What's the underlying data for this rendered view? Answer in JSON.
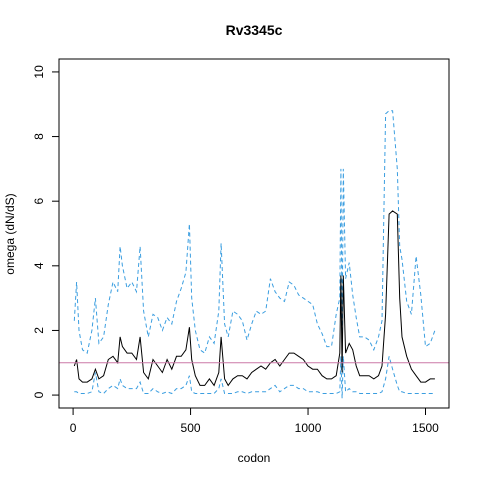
{
  "chart_data": {
    "type": "line",
    "title": "Rv3345c",
    "xlabel": "codon",
    "ylabel": "omega (dN/dS)",
    "xlim": [
      -60,
      1600
    ],
    "ylim": [
      -0.4,
      10.4
    ],
    "x_ticks": [
      0,
      500,
      1000,
      1500
    ],
    "y_ticks": [
      0,
      2,
      4,
      6,
      8,
      10
    ],
    "x_tick_labels": [
      "0",
      "500",
      "1000",
      "1500"
    ],
    "y_tick_labels": [
      "0",
      "2",
      "4",
      "6",
      "8",
      "10"
    ],
    "grid": false,
    "legend": "none",
    "reference_line": {
      "y": 1,
      "color": "#cc79a7"
    },
    "series": [
      {
        "role": "estimate",
        "color": "#000000",
        "dash": "solid",
        "x": [
          5,
          15,
          25,
          40,
          60,
          80,
          95,
          110,
          130,
          150,
          170,
          190,
          200,
          210,
          230,
          250,
          270,
          285,
          300,
          320,
          340,
          360,
          380,
          400,
          420,
          440,
          460,
          480,
          495,
          505,
          520,
          540,
          560,
          580,
          600,
          620,
          630,
          645,
          660,
          680,
          700,
          720,
          740,
          760,
          780,
          800,
          820,
          840,
          860,
          880,
          900,
          920,
          940,
          960,
          980,
          1000,
          1020,
          1040,
          1060,
          1080,
          1100,
          1120,
          1135,
          1140,
          1145,
          1150,
          1160,
          1175,
          1190,
          1205,
          1220,
          1240,
          1260,
          1280,
          1300,
          1315,
          1330,
          1345,
          1360,
          1380,
          1390,
          1400,
          1420,
          1440,
          1460,
          1480,
          1500,
          1520,
          1540
        ],
        "y": [
          0.9,
          1.1,
          0.5,
          0.4,
          0.4,
          0.5,
          0.8,
          0.5,
          0.6,
          1.1,
          1.2,
          1.0,
          1.8,
          1.5,
          1.3,
          1.3,
          1.1,
          1.8,
          0.7,
          0.5,
          1.1,
          0.9,
          0.7,
          1.1,
          0.8,
          1.2,
          1.2,
          1.4,
          2.1,
          1.1,
          0.6,
          0.3,
          0.3,
          0.5,
          0.3,
          0.7,
          1.8,
          0.5,
          0.3,
          0.5,
          0.6,
          0.6,
          0.5,
          0.7,
          0.8,
          0.9,
          0.8,
          1.0,
          1.1,
          0.9,
          1.1,
          1.3,
          1.3,
          1.2,
          1.1,
          0.9,
          0.8,
          0.8,
          0.6,
          0.5,
          0.5,
          0.6,
          1.3,
          3.7,
          0.7,
          3.7,
          1.3,
          1.6,
          1.4,
          0.9,
          0.6,
          0.6,
          0.6,
          0.5,
          0.6,
          0.9,
          2.5,
          5.6,
          5.7,
          5.6,
          3.0,
          1.8,
          1.2,
          0.8,
          0.6,
          0.4,
          0.4,
          0.5,
          0.5
        ]
      },
      {
        "role": "upper bound",
        "color": "#3b9ee0",
        "dash": "dashed",
        "x": [
          5,
          15,
          25,
          40,
          60,
          80,
          95,
          110,
          130,
          150,
          170,
          190,
          200,
          210,
          230,
          250,
          270,
          285,
          300,
          320,
          340,
          360,
          380,
          400,
          420,
          440,
          460,
          480,
          495,
          505,
          520,
          540,
          560,
          580,
          600,
          620,
          630,
          645,
          660,
          680,
          700,
          720,
          740,
          760,
          780,
          800,
          820,
          840,
          860,
          880,
          900,
          920,
          940,
          960,
          980,
          1000,
          1020,
          1040,
          1060,
          1080,
          1100,
          1120,
          1135,
          1140,
          1145,
          1150,
          1160,
          1175,
          1190,
          1205,
          1220,
          1240,
          1260,
          1280,
          1300,
          1315,
          1330,
          1345,
          1360,
          1380,
          1390,
          1400,
          1420,
          1440,
          1460,
          1480,
          1500,
          1520,
          1540
        ],
        "y": [
          2.3,
          3.5,
          2.0,
          1.4,
          1.3,
          2.0,
          3.0,
          1.6,
          1.8,
          2.8,
          3.5,
          3.2,
          4.6,
          4.0,
          3.3,
          3.5,
          3.2,
          4.6,
          2.6,
          1.8,
          2.5,
          2.4,
          2.0,
          2.4,
          2.2,
          2.9,
          3.3,
          3.8,
          5.3,
          3.0,
          2.0,
          1.4,
          1.3,
          1.8,
          1.6,
          2.6,
          4.7,
          2.2,
          1.8,
          2.6,
          2.5,
          2.3,
          1.7,
          2.2,
          2.6,
          2.5,
          2.6,
          3.6,
          3.2,
          3.0,
          2.9,
          3.5,
          3.4,
          3.1,
          3.0,
          2.9,
          2.8,
          2.2,
          1.9,
          1.5,
          1.5,
          2.5,
          3.0,
          7.0,
          1.8,
          7.0,
          3.6,
          4.1,
          3.1,
          2.4,
          1.8,
          1.8,
          1.7,
          1.4,
          1.8,
          2.3,
          8.7,
          8.8,
          8.8,
          7.0,
          4.6,
          4.2,
          2.9,
          2.5,
          4.3,
          3.1,
          1.5,
          1.6,
          2.0
        ]
      },
      {
        "role": "lower bound",
        "color": "#3b9ee0",
        "dash": "dashed",
        "x": [
          5,
          15,
          25,
          40,
          60,
          80,
          95,
          110,
          130,
          150,
          170,
          190,
          200,
          210,
          230,
          250,
          270,
          285,
          300,
          320,
          340,
          360,
          380,
          400,
          420,
          440,
          460,
          480,
          495,
          505,
          520,
          540,
          560,
          580,
          600,
          620,
          630,
          645,
          660,
          680,
          700,
          720,
          740,
          760,
          780,
          800,
          820,
          840,
          860,
          880,
          900,
          920,
          940,
          960,
          980,
          1000,
          1020,
          1040,
          1060,
          1080,
          1100,
          1120,
          1135,
          1140,
          1145,
          1150,
          1160,
          1175,
          1190,
          1205,
          1220,
          1240,
          1260,
          1280,
          1300,
          1315,
          1330,
          1345,
          1360,
          1380,
          1390,
          1400,
          1420,
          1440,
          1460,
          1480,
          1500,
          1520,
          1540
        ],
        "y": [
          0.1,
          0.1,
          0.05,
          0.05,
          0.05,
          0.1,
          0.7,
          0.1,
          0.05,
          0.2,
          0.3,
          0.2,
          0.5,
          0.3,
          0.2,
          0.2,
          0.2,
          0.4,
          0.05,
          0.05,
          0.2,
          0.1,
          0.05,
          0.1,
          0.05,
          0.2,
          0.2,
          0.3,
          0.6,
          0.1,
          0.05,
          0.05,
          0.05,
          0.05,
          0.05,
          0.2,
          0.5,
          0.05,
          0.05,
          0.05,
          0.1,
          0.1,
          0.05,
          0.1,
          0.1,
          0.1,
          0.1,
          0.2,
          0.3,
          0.1,
          0.2,
          0.3,
          0.3,
          0.2,
          0.2,
          0.1,
          0.1,
          0.1,
          0.05,
          0.05,
          0.05,
          0.05,
          0.1,
          1.2,
          -0.1,
          1.2,
          0.1,
          0.2,
          0.1,
          0.1,
          0.05,
          0.05,
          0.05,
          0.05,
          0.05,
          0.1,
          0.5,
          1.2,
          0.8,
          0.3,
          0.1,
          0.1,
          0.05,
          0.05,
          0.05,
          0.05,
          0.05,
          0.05,
          0.05
        ]
      }
    ]
  }
}
